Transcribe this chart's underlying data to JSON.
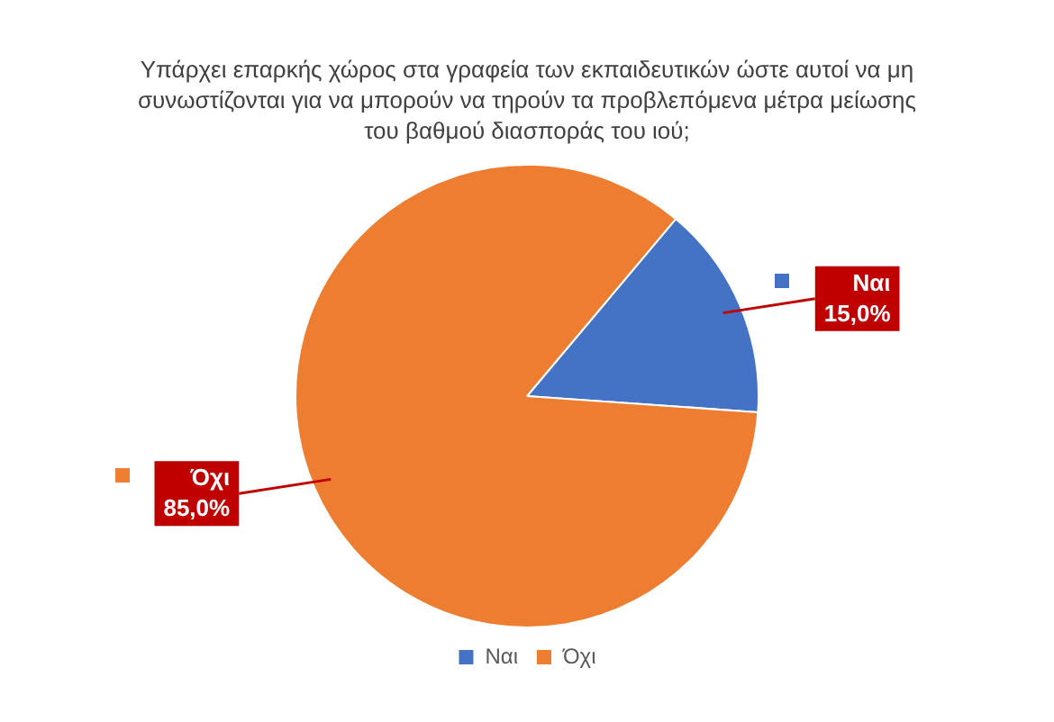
{
  "chart_data": {
    "type": "pie",
    "title": "Υπάρχει επαρκής χώρος στα γραφεία των εκπαιδευτικών ώστε αυτοί να μη συνωστίζονται για να μπορούν να τηρούν τα προβλεπόμενα μέτρα μείωσης του βαθμού διασποράς του ιού;",
    "categories": [
      "Ναι",
      "Όχι"
    ],
    "values": [
      15,
      85
    ],
    "value_labels": [
      "15,0%",
      "85,0%"
    ],
    "colors": [
      "#4472c4",
      "#ed7d31"
    ],
    "legend": "bottom"
  }
}
